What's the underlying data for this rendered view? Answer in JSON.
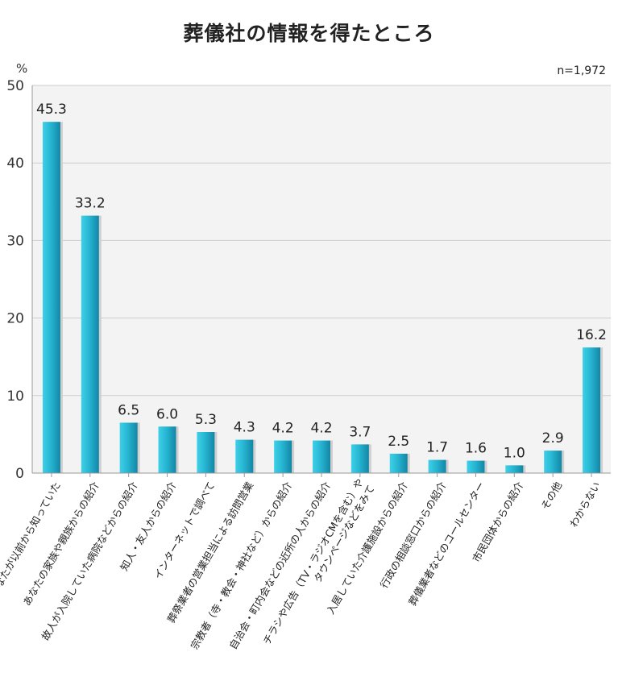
{
  "chart_data": {
    "type": "bar",
    "title": "葬儀社の情報を得たところ",
    "y_unit": "%",
    "note": "n=1,972",
    "ylim": [
      0,
      50
    ],
    "yticks": [
      0,
      10,
      20,
      30,
      40,
      50
    ],
    "grid": true,
    "categories": [
      [
        "あなたが以前から知っていた"
      ],
      [
        "あなたの家族や親族からの紹介"
      ],
      [
        "故人が入院していた病院などからの紹介"
      ],
      [
        "知人・友人からの紹介"
      ],
      [
        "インターネットで調べて"
      ],
      [
        "葬祭業者の営業担当による訪問営業"
      ],
      [
        "宗教者（寺・教会・神社など）からの紹介"
      ],
      [
        "自治会・町内会などの近所の人からの紹介"
      ],
      [
        "チラシや広告（TV・ラジオCMを含む）や",
        "タウンページなどをみて"
      ],
      [
        "入居していた介護施設からの紹介"
      ],
      [
        "行政の相談窓口からの紹介"
      ],
      [
        "葬儀業者などのコールセンター"
      ],
      [
        "市民団体からの紹介"
      ],
      [
        "その他"
      ],
      [
        "わからない"
      ]
    ],
    "values": [
      45.3,
      33.2,
      6.5,
      6.0,
      5.3,
      4.3,
      4.2,
      4.2,
      3.7,
      2.5,
      1.7,
      1.6,
      1.0,
      2.9,
      16.2
    ],
    "value_labels": [
      "45.3",
      "33.2",
      "6.5",
      "6.0",
      "5.3",
      "4.3",
      "4.2",
      "4.2",
      "3.7",
      "2.5",
      "1.7",
      "1.6",
      "1.0",
      "2.9",
      "16.2"
    ],
    "colors": {
      "bar_light": "#3fd0e8",
      "bar_dark": "#1596b3",
      "shadow": "#cfcfcf",
      "plot_bg": "#f3f3f3",
      "grid": "#cccccc"
    }
  }
}
